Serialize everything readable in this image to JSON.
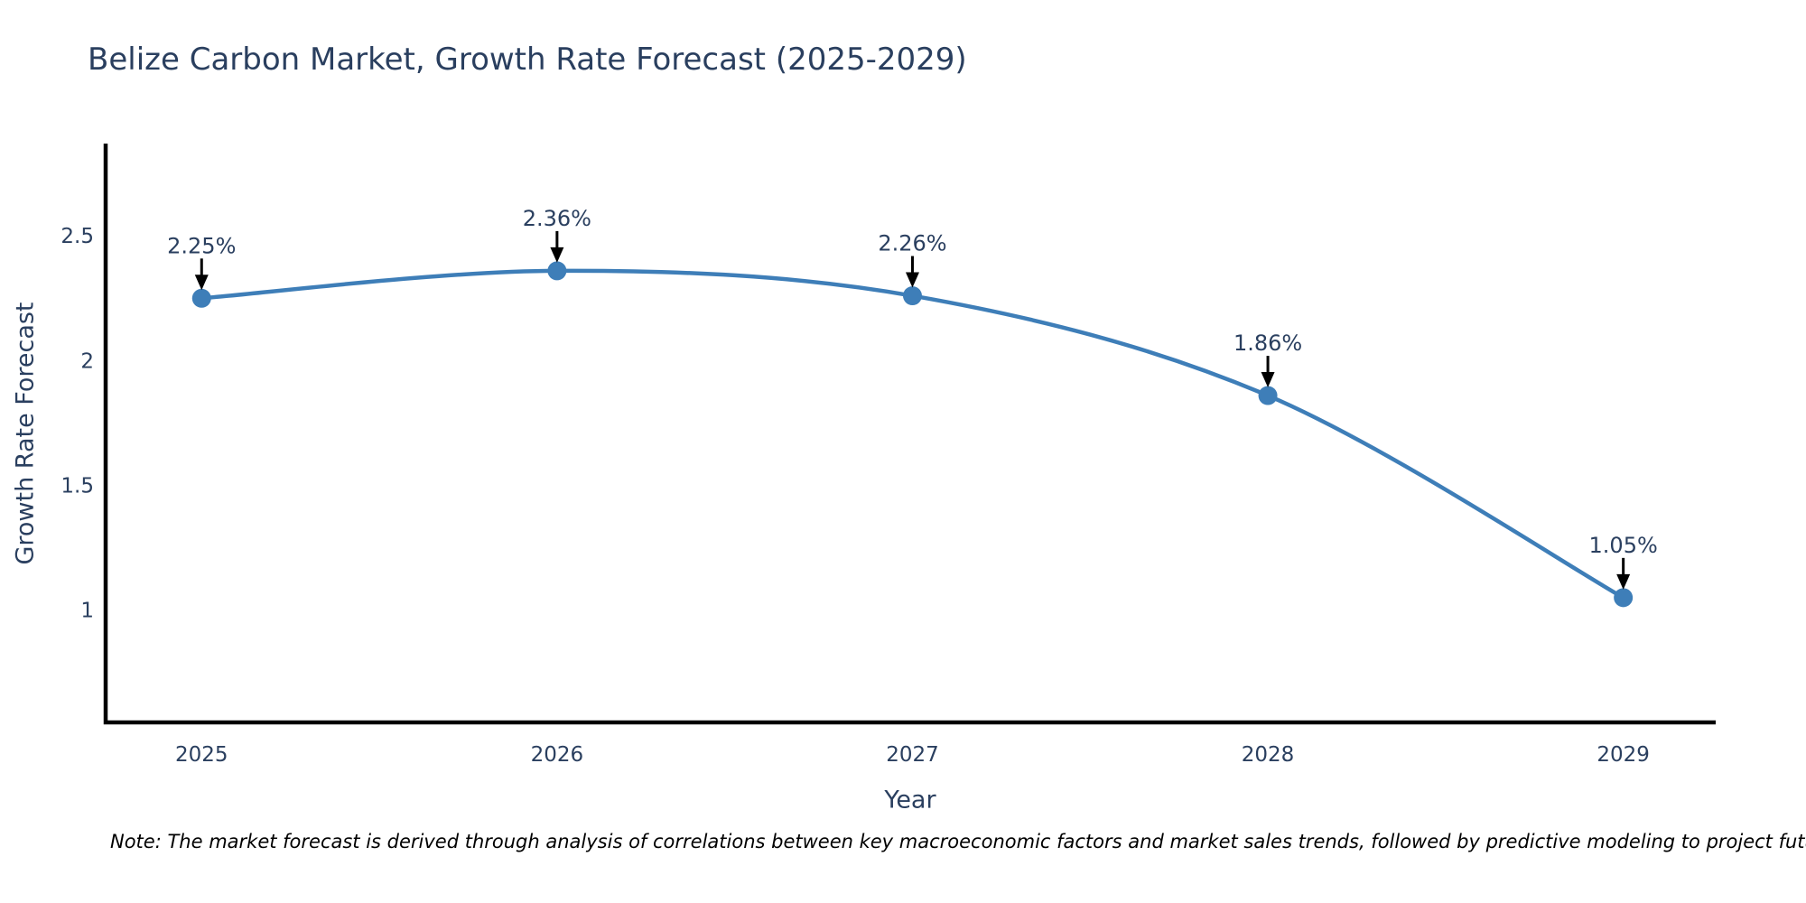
{
  "note": "Note: The market forecast is derived through analysis of correlations between key macroeconomic factors and market sales trends, followed by predictive modeling to project future sales",
  "colors": {
    "line": "#3e7eb8",
    "marker": "#3e7eb8",
    "axis": "#000000",
    "text": "#2a3f5f",
    "annotation_arrow": "#000000",
    "background": "#ffffff"
  },
  "chart_data": {
    "type": "line",
    "line_shape": "spline",
    "title": "Belize Carbon Market, Growth Rate Forecast (2025-2029)",
    "xlabel": "Year",
    "ylabel": "Growth Rate Forecast",
    "x": [
      2025,
      2026,
      2027,
      2028,
      2029
    ],
    "series": [
      {
        "name": "Growth Rate Forecast",
        "values": [
          2.25,
          2.36,
          2.26,
          1.86,
          1.05
        ]
      }
    ],
    "point_labels": [
      "2.25%",
      "2.36%",
      "2.26%",
      "1.86%",
      "1.05%"
    ],
    "xticks": [
      "2025",
      "2026",
      "2027",
      "2028",
      "2029"
    ],
    "xtick_values": [
      2025,
      2026,
      2027,
      2028,
      2029
    ],
    "yticks": [
      "2.5",
      "2",
      "1.5",
      "1"
    ],
    "ytick_values": [
      2.5,
      2.0,
      1.5,
      1.0
    ],
    "xlim": [
      2024.73,
      2029.26
    ],
    "ylim": [
      0.55,
      2.87
    ],
    "grid": false,
    "legend": "none"
  }
}
